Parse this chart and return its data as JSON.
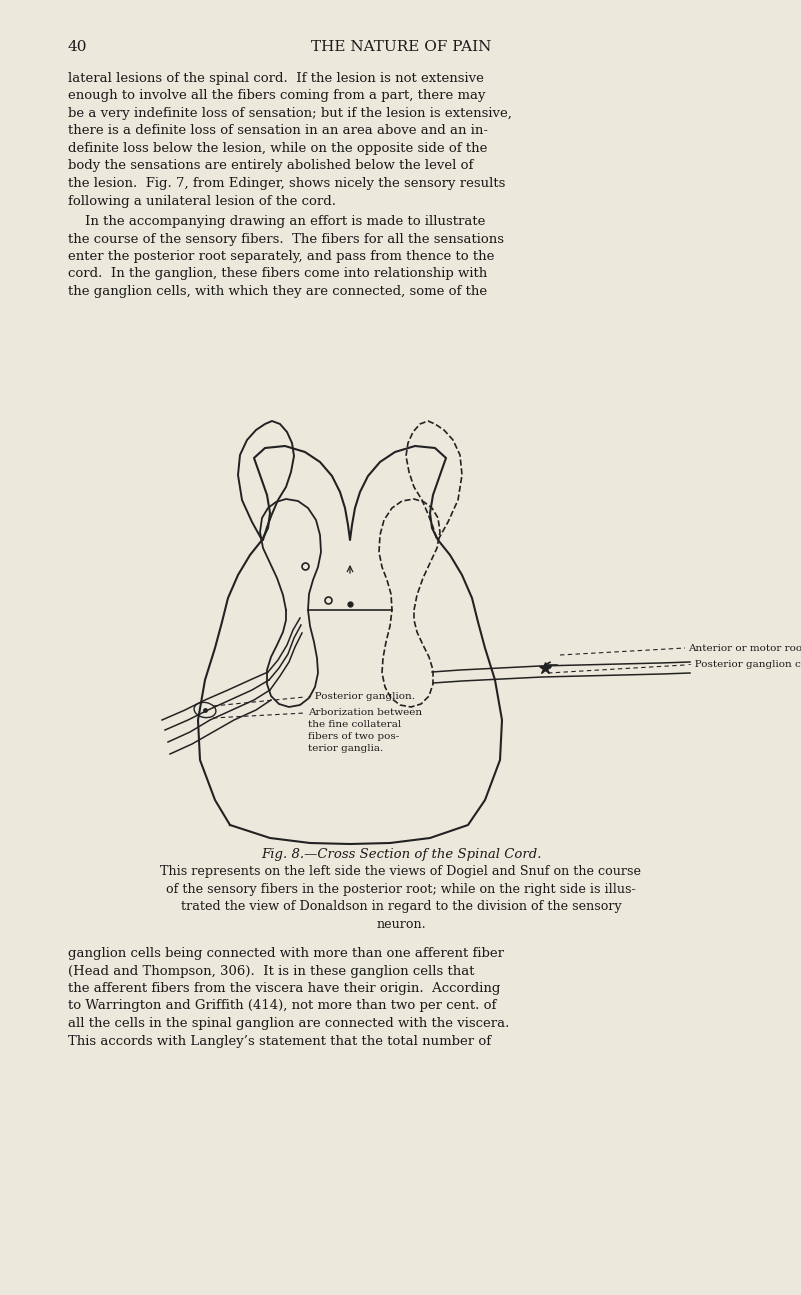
{
  "bg_color": "#ede8dc",
  "text_color": "#1a1a1a",
  "page_number": "40",
  "header": "THE NATURE OF PAIN",
  "p1_lines": [
    "lateral lesions of the spinal cord.  If the lesion is not extensive",
    "enough to involve all the fibers coming from a part, there may",
    "be a very indefinite loss of sensation; but if the lesion is extensive,",
    "there is a definite loss of sensation in an area above and an in-",
    "definite loss below the lesion, while on the opposite side of the",
    "body the sensations are entirely abolished below the level of",
    "the lesion.  Fig. 7, from Edinger, shows nicely the sensory results",
    "following a unilateral lesion of the cord."
  ],
  "p2_lines": [
    "    In the accompanying drawing an effort is made to illustrate",
    "the course of the sensory fibers.  The fibers for all the sensations",
    "enter the posterior root separately, and pass from thence to the",
    "cord.  In the ganglion, these fibers come into relationship with",
    "the ganglion cells, with which they are connected, some of the"
  ],
  "fig_caption_title": "Fig. 8.—Cross Section of the Spinal Cord.",
  "cap_lines": [
    "This represents on the left side the views of Dogiel and Snuf on the course",
    "of the sensory fibers in the posterior root; while on the right side is illus-",
    "trated the view of Donaldson in regard to the division of the sensory",
    "neuron."
  ],
  "p3_lines": [
    "ganglion cells being connected with more than one afferent fiber",
    "(Head and Thompson, 306).  It is in these ganglion cells that",
    "the afferent fibers from the viscera have their origin.  According",
    "to Warrington and Griffith (414), not more than two per cent. of",
    "all the cells in the spinal ganglion are connected with the viscera.",
    "This accords with Langley’s statement that the total number of"
  ],
  "label_anterior": "Anterior or motor root.",
  "label_posterior_cell": "- Posterior ganglion cell.",
  "label_posterior_ganglion": "- Posterior ganglion.",
  "label_arborization": "Arborization between\nthe fine collateral\nfibers of two pos-\nterior ganglia."
}
